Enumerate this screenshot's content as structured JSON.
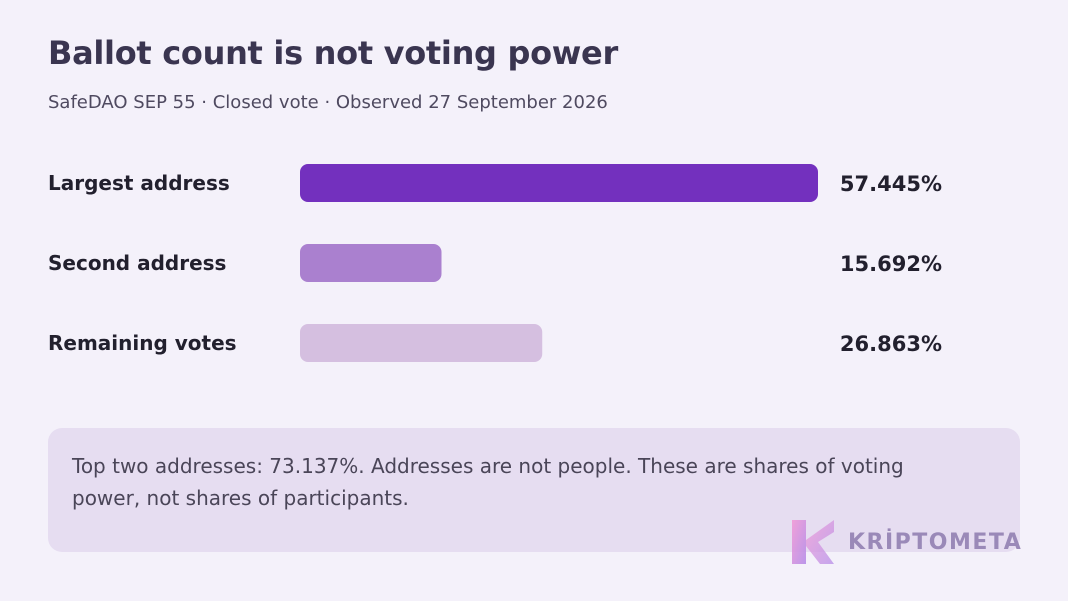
{
  "header": {
    "title": "Ballot count is not voting power",
    "subtitle": "SafeDAO SEP 55 · Closed vote · Observed 27 September 2026"
  },
  "chart_data": {
    "type": "bar",
    "orientation": "horizontal",
    "categories": [
      "Largest address",
      "Second address",
      "Remaining votes"
    ],
    "values": [
      57.445,
      15.692,
      26.863
    ],
    "value_labels": [
      "57.445%",
      "15.692%",
      "26.863%"
    ],
    "bar_colors": [
      "#7330be",
      "#aa80cf",
      "#d5bfe0"
    ],
    "xlim": [
      0,
      57.445
    ],
    "grid": false,
    "legend": "none"
  },
  "note": {
    "text": "Top two addresses: 73.137%. Addresses are not people. These are shares of voting power, not shares of participants."
  },
  "logo": {
    "wordmark": "KRİPTOMETA",
    "icon": "kriptometa-logo-icon"
  }
}
